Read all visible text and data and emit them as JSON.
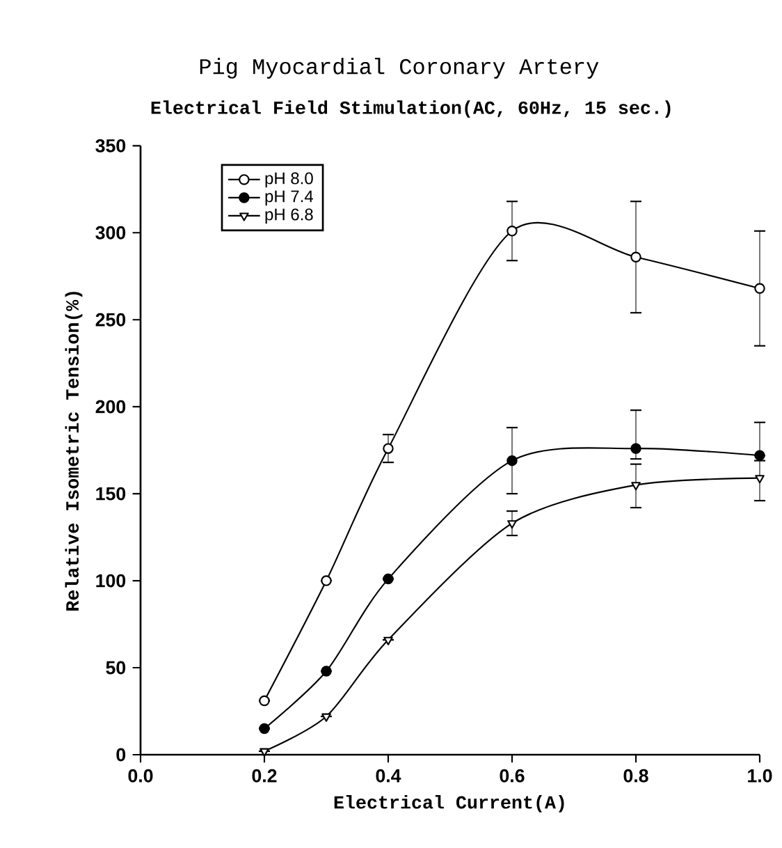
{
  "chart_data": {
    "type": "line",
    "title": "Pig Myocardial Coronary Artery",
    "subtitle": "Electrical Field Stimulation(AC, 60Hz, 15 sec.)",
    "xlabel": "Electrical Current(A)",
    "ylabel": "Relative Isometric Tension(%)",
    "x": [
      0.2,
      0.3,
      0.4,
      0.6,
      0.8,
      1.0
    ],
    "series": [
      {
        "name": "pH 8.0",
        "color": "#ffffff",
        "marker": "circle",
        "values": [
          31,
          100,
          176,
          301,
          286,
          268
        ],
        "errors": [
          null,
          null,
          8,
          17,
          32,
          33
        ]
      },
      {
        "name": "pH 7.4",
        "color": "#000000",
        "marker": "circle",
        "values": [
          15,
          48,
          101,
          169,
          176,
          172
        ],
        "errors": [
          null,
          null,
          null,
          19,
          [
            170,
            198
          ],
          [
            172,
            191
          ]
        ]
      },
      {
        "name": "pH 6.8",
        "color": "#ffffff",
        "marker": "triangle",
        "values": [
          2,
          22,
          66,
          133,
          155,
          159
        ],
        "errors": [
          null,
          null,
          null,
          7,
          [
            142,
            167
          ],
          [
            146,
            169
          ]
        ]
      }
    ],
    "xlim": [
      0,
      1
    ],
    "ylim": [
      0,
      350
    ],
    "xticks": [
      {
        "value": 0,
        "label": "0.0"
      },
      {
        "value": 0.2,
        "label": "0.2"
      },
      {
        "value": 0.4,
        "label": "0.4"
      },
      {
        "value": 0.6,
        "label": "0.6"
      },
      {
        "value": 0.8,
        "label": "0.8"
      },
      {
        "value": 1.0,
        "label": "1.0"
      }
    ],
    "yticks": [
      0,
      50,
      100,
      150,
      200,
      250,
      300,
      350
    ],
    "legend": "top left",
    "grid": false,
    "line_style": "solid"
  }
}
